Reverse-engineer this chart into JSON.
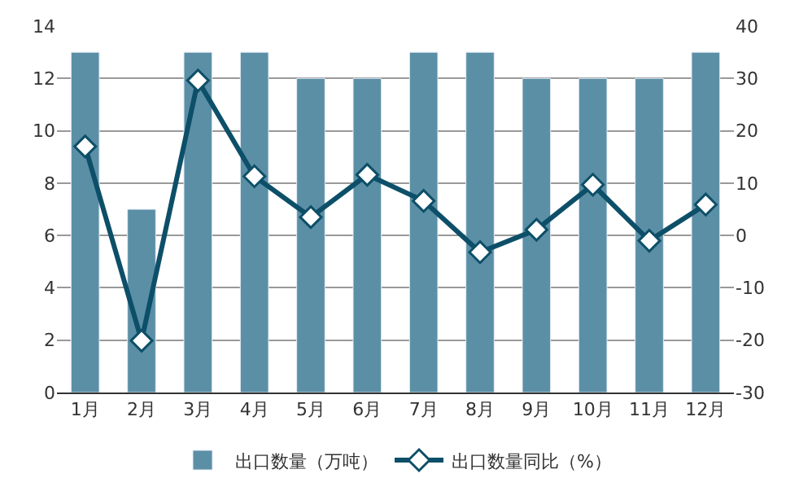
{
  "chart_data": {
    "type": "bar",
    "categories": [
      "1月",
      "2月",
      "3月",
      "4月",
      "5月",
      "6月",
      "7月",
      "8月",
      "9月",
      "10月",
      "11月",
      "12月"
    ],
    "series": [
      {
        "name": "出口数量（万吨）",
        "color": "#5b8fa6",
        "values": [
          13,
          7,
          13,
          13,
          12,
          12,
          13,
          13,
          12,
          12,
          12,
          13
        ]
      },
      {
        "name": "出口数量同比（%）",
        "type": "line",
        "axis": "y2",
        "color": "#0d4f68",
        "marker": "diamond",
        "values": [
          17.0,
          -20.1,
          29.6,
          11.3,
          3.5,
          11.6,
          6.6,
          -3.2,
          1.1,
          9.7,
          -1.0,
          5.9
        ]
      }
    ],
    "ylim": [
      0,
      14
    ],
    "yticks": [
      0,
      2,
      4,
      6,
      8,
      10,
      12,
      14
    ],
    "y2lim": [
      -30,
      40
    ],
    "y2ticks": [
      -30,
      -20,
      -10,
      0,
      10,
      20,
      30,
      40
    ],
    "grid": "y",
    "legend": "bottom"
  }
}
